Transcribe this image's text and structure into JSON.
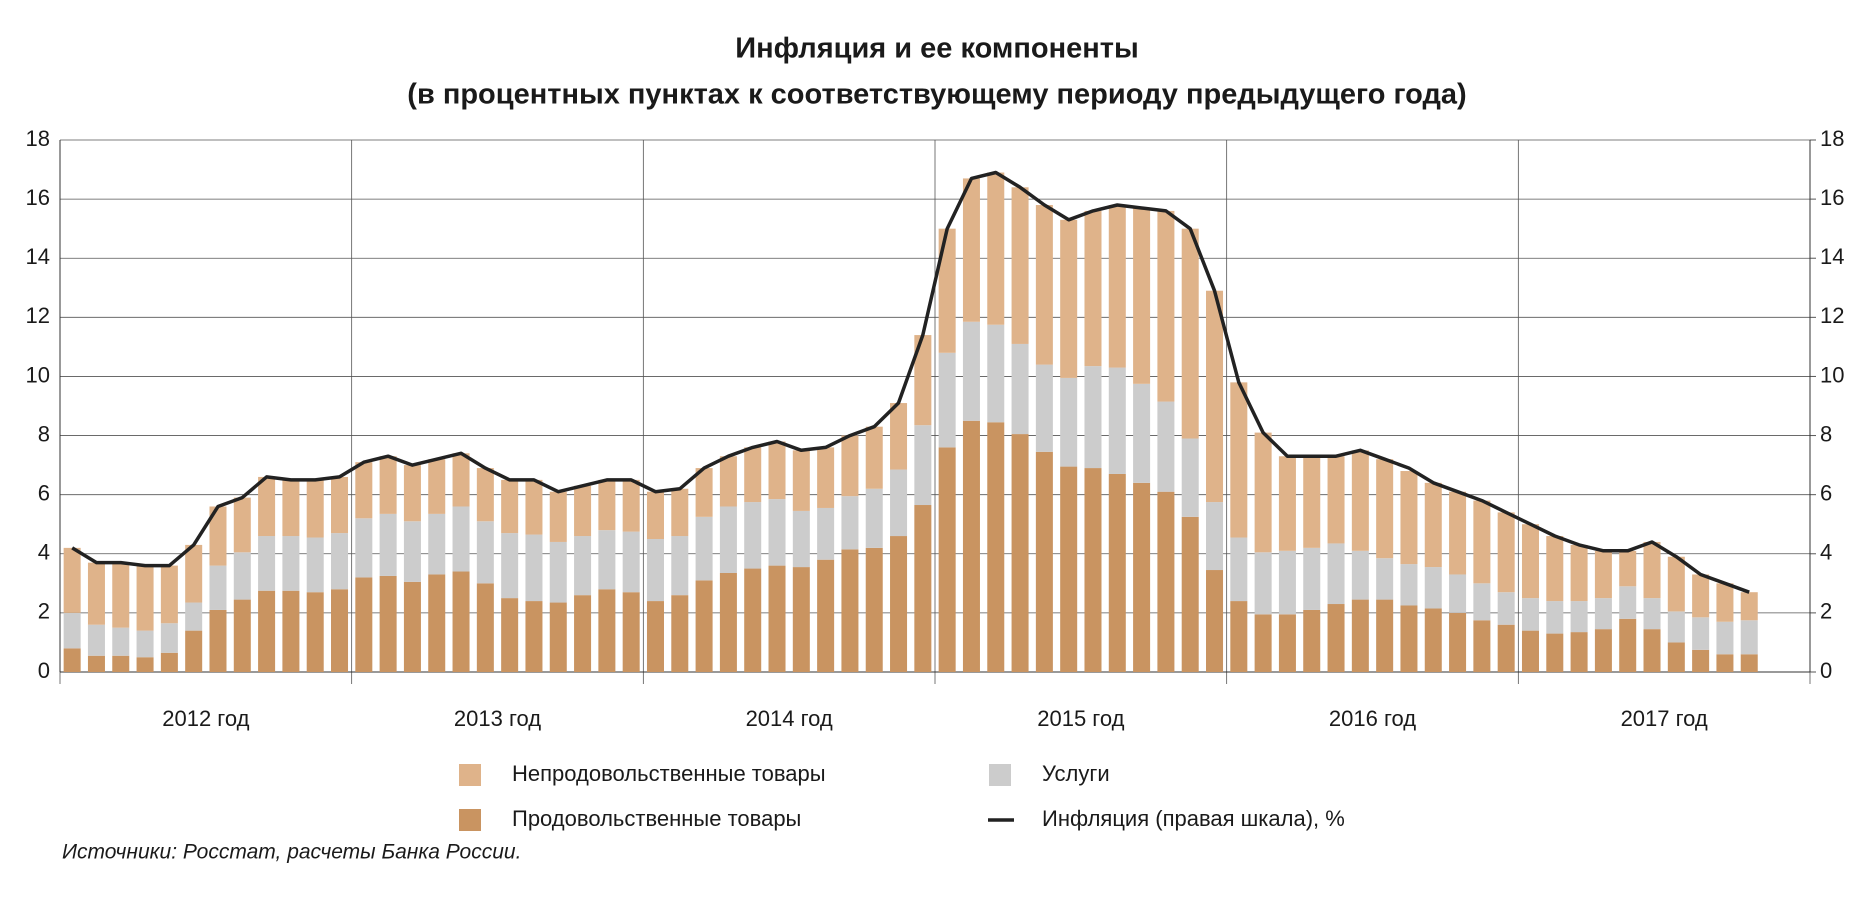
{
  "chart_data": {
    "type": "bar",
    "stacked": true,
    "title": "Инфляция и ее компоненты",
    "subtitle": "(в процентных пунктах к соответствующему периоду предыдущего года)",
    "year_labels": [
      "2012 год",
      "2013 год",
      "2014 год",
      "2015 год",
      "2016 год",
      "2017 год"
    ],
    "ylim": [
      0,
      18
    ],
    "yticks": [
      0,
      2,
      4,
      6,
      8,
      10,
      12,
      14,
      16,
      18
    ],
    "y2lim": [
      0,
      18
    ],
    "y2ticks": [
      0,
      2,
      4,
      6,
      8,
      10,
      12,
      14,
      16,
      18
    ],
    "grid": true,
    "series": [
      {
        "name": "Продовольственные товары",
        "color": "#c99461",
        "values": [
          0.8,
          0.55,
          0.55,
          0.5,
          0.65,
          1.4,
          2.1,
          2.45,
          2.75,
          2.75,
          2.7,
          2.8,
          3.2,
          3.25,
          3.05,
          3.3,
          3.4,
          3.0,
          2.5,
          2.4,
          2.35,
          2.6,
          2.8,
          2.7,
          2.4,
          2.6,
          3.1,
          3.35,
          3.5,
          3.6,
          3.55,
          3.8,
          4.15,
          4.2,
          4.6,
          5.65,
          7.6,
          8.5,
          8.45,
          8.05,
          7.45,
          6.95,
          6.9,
          6.7,
          6.4,
          6.1,
          5.25,
          3.45,
          2.4,
          1.95,
          1.95,
          2.1,
          2.3,
          2.45,
          2.45,
          2.25,
          2.15,
          2.0,
          1.75,
          1.6,
          1.4,
          1.3,
          1.35,
          1.45,
          1.8,
          1.45,
          1.0,
          0.75,
          0.6,
          0.6
        ]
      },
      {
        "name": "Услуги",
        "color": "#cccccc",
        "values": [
          1.2,
          1.05,
          0.95,
          0.9,
          1.0,
          0.95,
          1.5,
          1.6,
          1.85,
          1.85,
          1.85,
          1.9,
          2.0,
          2.1,
          2.05,
          2.05,
          2.2,
          2.1,
          2.2,
          2.25,
          2.05,
          2.0,
          2.0,
          2.05,
          2.1,
          2.0,
          2.15,
          2.25,
          2.25,
          2.25,
          1.9,
          1.75,
          1.8,
          2.0,
          2.25,
          2.7,
          3.2,
          3.35,
          3.3,
          3.05,
          2.95,
          3.0,
          3.45,
          3.6,
          3.35,
          3.05,
          2.65,
          2.3,
          2.15,
          2.1,
          2.15,
          2.1,
          2.05,
          1.65,
          1.4,
          1.4,
          1.4,
          1.3,
          1.25,
          1.1,
          1.1,
          1.1,
          1.05,
          1.05,
          1.1,
          1.05,
          1.05,
          1.1,
          1.1,
          1.15
        ]
      },
      {
        "name": "Непродовольственные товары",
        "color": "#dfb38a",
        "values": [
          2.2,
          2.1,
          2.2,
          2.2,
          1.95,
          1.95,
          2.0,
          1.85,
          2.0,
          1.9,
          1.95,
          1.9,
          1.9,
          1.95,
          1.9,
          1.85,
          1.8,
          1.8,
          1.8,
          1.85,
          1.7,
          1.7,
          1.7,
          1.75,
          1.6,
          1.6,
          1.65,
          1.7,
          1.85,
          1.95,
          2.05,
          2.05,
          2.05,
          2.1,
          2.25,
          3.05,
          4.2,
          4.85,
          5.15,
          5.3,
          5.4,
          5.35,
          5.25,
          5.5,
          5.95,
          6.45,
          7.1,
          7.15,
          5.25,
          4.05,
          3.2,
          3.1,
          2.95,
          3.4,
          3.35,
          3.15,
          2.85,
          2.8,
          2.8,
          2.7,
          2.5,
          2.2,
          1.9,
          1.6,
          1.2,
          1.9,
          1.85,
          1.45,
          1.3,
          0.95
        ]
      },
      {
        "name": "Инфляция (правая шкала), %",
        "color": "#222222",
        "type": "line",
        "axis": "y2",
        "values": [
          4.2,
          3.7,
          3.7,
          3.6,
          3.6,
          4.3,
          5.6,
          5.9,
          6.6,
          6.5,
          6.5,
          6.6,
          7.1,
          7.3,
          7.0,
          7.2,
          7.4,
          6.9,
          6.5,
          6.5,
          6.1,
          6.3,
          6.5,
          6.5,
          6.1,
          6.2,
          6.9,
          7.3,
          7.6,
          7.8,
          7.5,
          7.6,
          8.0,
          8.3,
          9.1,
          11.4,
          15.0,
          16.7,
          16.9,
          16.4,
          15.8,
          15.3,
          15.6,
          15.8,
          15.7,
          15.6,
          15.0,
          12.9,
          9.8,
          8.1,
          7.3,
          7.3,
          7.3,
          7.5,
          7.2,
          6.9,
          6.4,
          6.1,
          5.8,
          5.4,
          5.0,
          4.6,
          4.3,
          4.1,
          4.1,
          4.4,
          3.9,
          3.3,
          3.0,
          2.7
        ]
      }
    ],
    "source": "Источники: Росстат, расчеты Банка России."
  }
}
